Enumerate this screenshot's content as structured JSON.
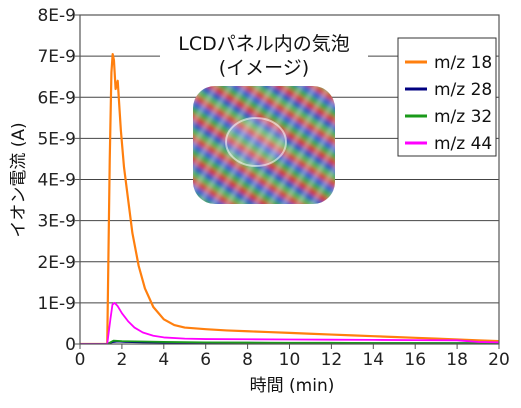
{
  "chart_data": {
    "type": "line",
    "title": "",
    "xlabel": "時間 (min)",
    "ylabel": "イオン電流 (A)",
    "xlim": [
      0,
      20
    ],
    "ylim": [
      0,
      8e-09
    ],
    "x_ticks": [
      0,
      2,
      4,
      6,
      8,
      10,
      12,
      14,
      16,
      18,
      20
    ],
    "y_ticks": [
      0,
      1e-09,
      2e-09,
      3e-09,
      4e-09,
      5e-09,
      6e-09,
      7e-09,
      8e-09
    ],
    "y_tick_labels": [
      "0",
      "1E-9",
      "2E-9",
      "3E-9",
      "4E-9",
      "5E-9",
      "6E-9",
      "7E-9",
      "8E-9"
    ],
    "grid": "horizontal",
    "legend_position": "top-right",
    "inset": {
      "title_line1": "LCDパネル内の気泡",
      "title_line2": "(イメージ)",
      "image_description_icon": "lcd-bubble-image"
    },
    "series": [
      {
        "name": "m/z 18",
        "color": "#ff7f0e",
        "x": [
          0,
          1.3,
          1.42,
          1.5,
          1.56,
          1.62,
          1.7,
          1.8,
          1.95,
          2.1,
          2.3,
          2.5,
          2.8,
          3.1,
          3.5,
          4,
          4.5,
          5,
          6,
          7,
          8,
          9,
          10,
          11,
          12,
          13,
          14,
          15,
          16,
          17,
          18,
          19,
          20
        ],
        "y": [
          0,
          0,
          4.5e-09,
          6.6e-09,
          7.05e-09,
          6.9e-09,
          6.2e-09,
          6.4e-09,
          5.2e-09,
          4.3e-09,
          3.5e-09,
          2.7e-09,
          1.9e-09,
          1.35e-09,
          9e-10,
          6e-10,
          4.6e-10,
          4e-10,
          3.6e-10,
          3.3e-10,
          3.1e-10,
          2.9e-10,
          2.7e-10,
          2.5e-10,
          2.3e-10,
          2.1e-10,
          1.9e-10,
          1.7e-10,
          1.5e-10,
          1.3e-10,
          1.1e-10,
          9e-11,
          7e-11
        ]
      },
      {
        "name": "m/z 28",
        "color": "#000080",
        "x": [
          0,
          1.3,
          1.45,
          1.6,
          1.8,
          2.2,
          3,
          4,
          6,
          8,
          10,
          12,
          14,
          16,
          18,
          20
        ],
        "y": [
          0,
          0,
          3e-11,
          5e-11,
          6e-11,
          5e-11,
          4e-11,
          3.5e-11,
          3e-11,
          3e-11,
          2.5e-11,
          2.5e-11,
          2e-11,
          2e-11,
          2e-11,
          2e-11
        ]
      },
      {
        "name": "m/z 32",
        "color": "#1a9a1a",
        "x": [
          0,
          1.3,
          1.45,
          1.6,
          2,
          3,
          4,
          6,
          8,
          10,
          12,
          14,
          16,
          18,
          20
        ],
        "y": [
          0,
          0,
          4e-11,
          8e-11,
          7e-11,
          6e-11,
          5e-11,
          4e-11,
          3.5e-11,
          3e-11,
          3e-11,
          2.5e-11,
          2.5e-11,
          2e-11,
          2e-11
        ]
      },
      {
        "name": "m/z 44",
        "color": "#ff00ff",
        "x": [
          0,
          1.3,
          1.45,
          1.55,
          1.65,
          1.8,
          2,
          2.3,
          2.6,
          3,
          3.5,
          4,
          5,
          6,
          8,
          10,
          12,
          14,
          16,
          18,
          19,
          20
        ],
        "y": [
          0,
          0,
          6e-10,
          9.6e-10,
          1e-09,
          9.2e-10,
          7.5e-10,
          5.5e-10,
          4e-10,
          2.8e-10,
          2e-10,
          1.6e-10,
          1.3e-10,
          1.2e-10,
          1.15e-10,
          1.1e-10,
          1.05e-10,
          1e-10,
          9.5e-11,
          9e-11,
          5e-11,
          4e-11
        ]
      }
    ]
  }
}
